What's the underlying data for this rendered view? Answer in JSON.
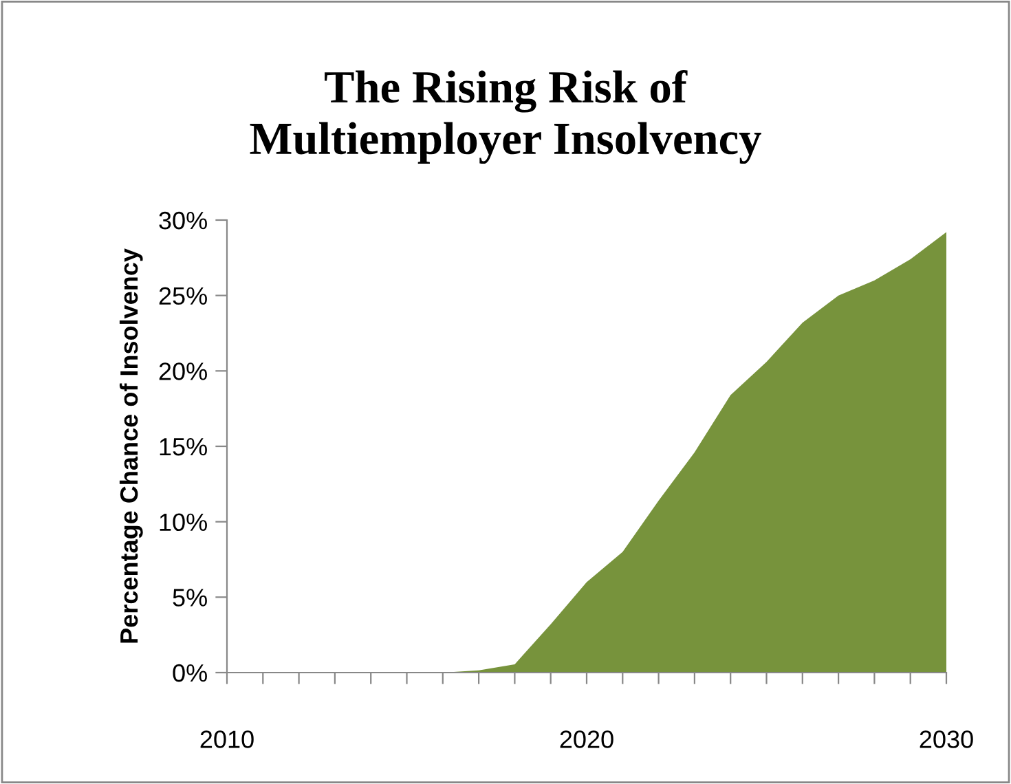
{
  "chart_data": {
    "type": "area",
    "title": "The Rising Risk of\nMultiemployer Insolvency",
    "ylabel": "Percentage Chance of Insolvency",
    "x": [
      2010,
      2011,
      2012,
      2013,
      2014,
      2015,
      2016,
      2017,
      2018,
      2019,
      2020,
      2021,
      2022,
      2023,
      2024,
      2025,
      2026,
      2027,
      2028,
      2029,
      2030
    ],
    "series": [
      {
        "color": "#77933c",
        "values": [
          0,
          0,
          0,
          0,
          0,
          0,
          0,
          0.15,
          0.55,
          3.2,
          6.0,
          8.0,
          11.4,
          14.6,
          18.4,
          20.6,
          23.2,
          25.0,
          26.0,
          27.4,
          29.2
        ]
      }
    ],
    "xlim": [
      2010,
      2030
    ],
    "xticks": [
      2010,
      {
        "value": 2011,
        "label": null
      },
      {
        "value": 2012,
        "label": null
      },
      {
        "value": 2013,
        "label": null
      },
      {
        "value": 2014,
        "label": null
      },
      {
        "value": 2015,
        "label": null
      },
      {
        "value": 2016,
        "label": null
      },
      {
        "value": 2017,
        "label": null
      },
      {
        "value": 2018,
        "label": null
      },
      {
        "value": 2019,
        "label": null
      },
      2020,
      {
        "value": 2021,
        "label": null
      },
      {
        "value": 2022,
        "label": null
      },
      {
        "value": 2023,
        "label": null
      },
      {
        "value": 2024,
        "label": null
      },
      {
        "value": 2025,
        "label": null
      },
      {
        "value": 2026,
        "label": null
      },
      {
        "value": 2027,
        "label": null
      },
      {
        "value": 2028,
        "label": null
      },
      {
        "value": 2029,
        "label": null
      },
      2030
    ],
    "ylim": [
      0,
      30
    ],
    "yticks": [
      {
        "value": 0,
        "label": "0%"
      },
      {
        "value": 5,
        "label": "5%"
      },
      {
        "value": 10,
        "label": "10%"
      },
      {
        "value": 15,
        "label": "15%"
      },
      {
        "value": 20,
        "label": "20%"
      },
      {
        "value": 25,
        "label": "25%"
      },
      {
        "value": 30,
        "label": "30%"
      }
    ],
    "grid": false,
    "legend": false
  }
}
